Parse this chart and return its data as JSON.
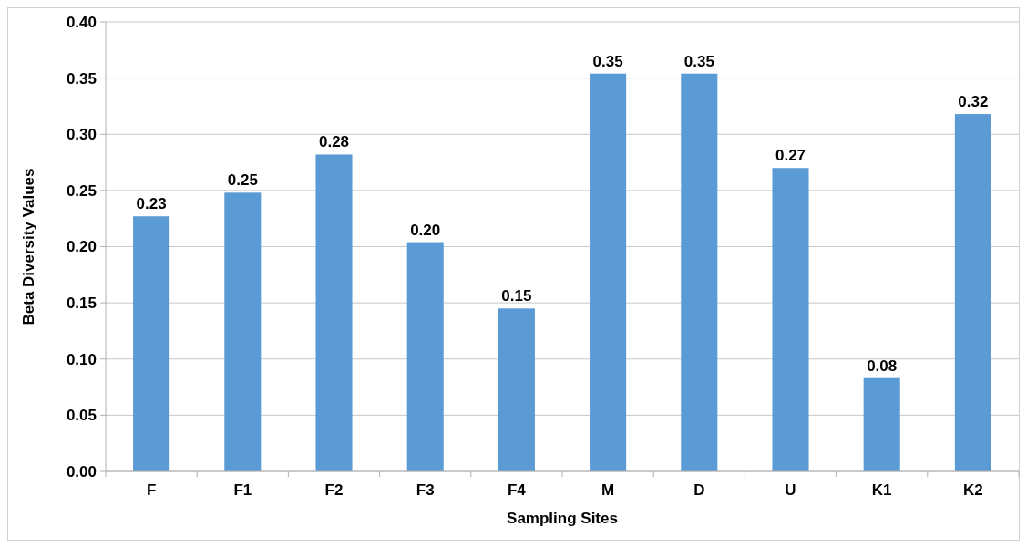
{
  "chart_data": {
    "type": "bar",
    "xlabel": "Sampling Sites",
    "ylabel": "Beta Diversity Values",
    "categories": [
      "F",
      "F1",
      "F2",
      "F3",
      "F4",
      "M",
      "D",
      "U",
      "K1",
      "K2"
    ],
    "values": [
      0.227,
      0.248,
      0.282,
      0.204,
      0.145,
      0.354,
      0.354,
      0.27,
      0.083,
      0.318
    ],
    "value_labels": [
      "0.23",
      "0.25",
      "0.28",
      "0.20",
      "0.15",
      "0.35",
      "0.35",
      "0.27",
      "0.08",
      "0.32"
    ],
    "color": "#5b9bd5",
    "ylim": [
      0,
      0.4
    ],
    "yticks": [
      {
        "value": 0,
        "label": "0.00"
      },
      {
        "value": 0.05,
        "label": "0.05"
      },
      {
        "value": 0.1,
        "label": "0.10"
      },
      {
        "value": 0.15,
        "label": "0.15"
      },
      {
        "value": 0.2,
        "label": "0.20"
      },
      {
        "value": 0.25,
        "label": "0.25"
      },
      {
        "value": 0.3,
        "label": "0.30"
      },
      {
        "value": 0.35,
        "label": "0.35"
      },
      {
        "value": 0.4,
        "label": "0.40"
      }
    ],
    "grid": "y"
  }
}
